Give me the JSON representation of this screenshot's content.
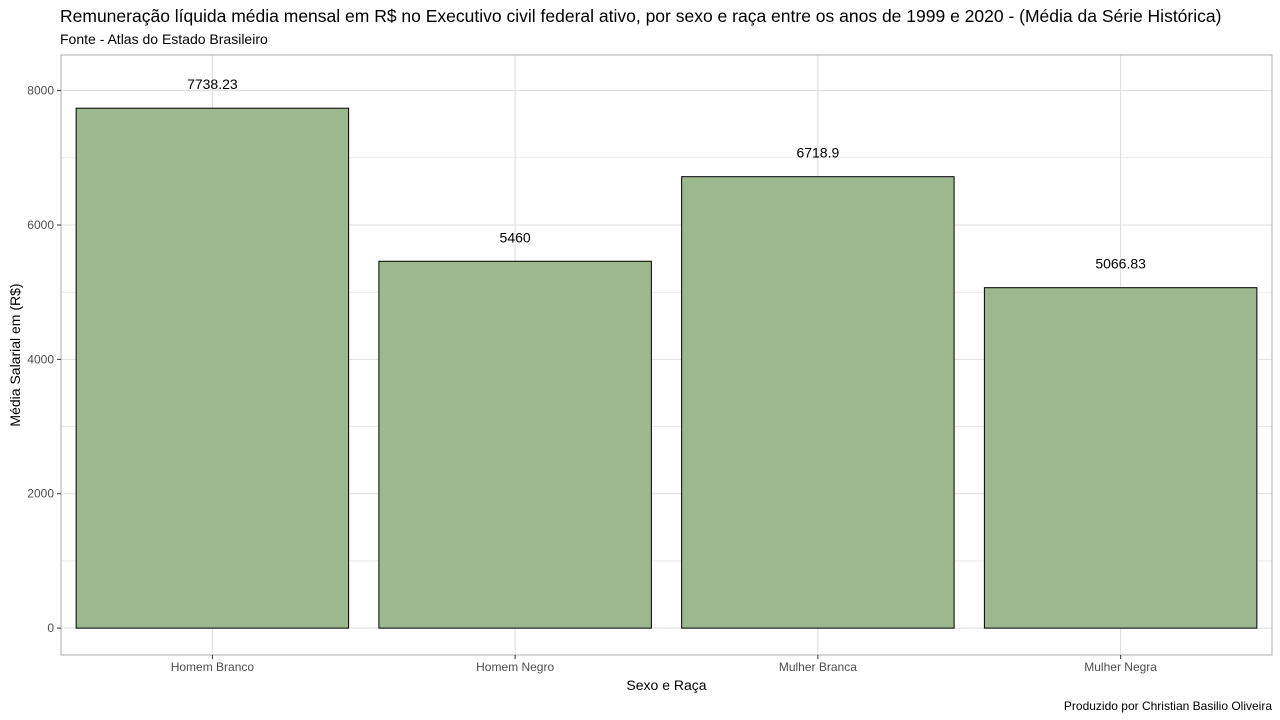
{
  "title": "Remuneração líquida média mensal em R$ no Executivo civil federal ativo, por sexo e raça entre os anos de 1999 e 2020 - (Média da Série Histórica)",
  "subtitle": "Fonte - Atlas do Estado Brasileiro",
  "caption": "Produzido por Christian Basilio Oliveira",
  "colors": {
    "bar_fill": "#9db78f",
    "bar_stroke": "#000000",
    "grid": "#dedede",
    "panel_border": "#b3b3b3"
  },
  "chart_data": {
    "type": "bar",
    "categories": [
      "Homem Branco",
      "Homem Negro",
      "Mulher Branca",
      "Mulher Negra"
    ],
    "values": [
      7738.23,
      5460,
      6718.9,
      5066.83
    ],
    "data_labels": [
      "7738.23",
      "5460",
      "6718.9",
      "5066.83"
    ],
    "xlabel": "Sexo e Raça",
    "ylabel": "Média Salarial em (R$)",
    "ylim": [
      -400,
      8530
    ],
    "yticks": [
      0,
      2000,
      4000,
      6000,
      8000
    ],
    "grid": true,
    "legend": "none"
  }
}
